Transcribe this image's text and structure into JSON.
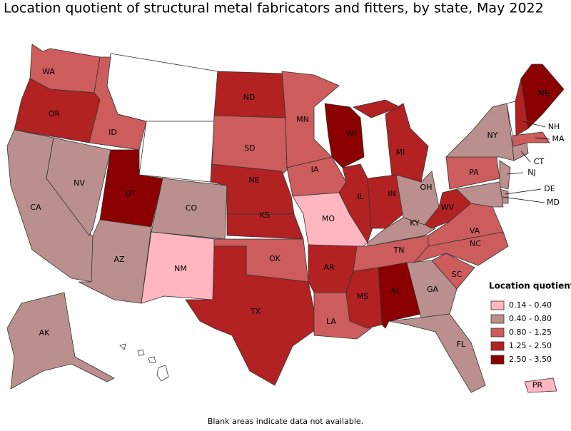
{
  "title": "Location quotient of structural metal fabricators and fitters, by state, May 2022",
  "note": "Blank areas indicate data not available.",
  "legend": {
    "title": "Location quotient",
    "bins": [
      {
        "label": "0.14 - 0.40",
        "color": "#ffb6c1"
      },
      {
        "label": "0.40 - 0.80",
        "color": "#bc8f8f"
      },
      {
        "label": "0.80 - 1.25",
        "color": "#cd5c5c"
      },
      {
        "label": "1.25 - 2.50",
        "color": "#b22222"
      },
      {
        "label": "2.50 - 3.50",
        "color": "#8b0000"
      }
    ]
  },
  "states": [
    {
      "abbr": "WA",
      "bin": 2
    },
    {
      "abbr": "OR",
      "bin": 3
    },
    {
      "abbr": "CA",
      "bin": 1
    },
    {
      "abbr": "NV",
      "bin": 1
    },
    {
      "abbr": "ID",
      "bin": 2
    },
    {
      "abbr": "UT",
      "bin": 4
    },
    {
      "abbr": "AZ",
      "bin": 1
    },
    {
      "abbr": "CO",
      "bin": 1
    },
    {
      "abbr": "NM",
      "bin": 0
    },
    {
      "abbr": "ND",
      "bin": 3
    },
    {
      "abbr": "SD",
      "bin": 2
    },
    {
      "abbr": "NE",
      "bin": 3
    },
    {
      "abbr": "KS",
      "bin": 3
    },
    {
      "abbr": "OK",
      "bin": 2
    },
    {
      "abbr": "TX",
      "bin": 3
    },
    {
      "abbr": "MN",
      "bin": 2
    },
    {
      "abbr": "IA",
      "bin": 2
    },
    {
      "abbr": "MO",
      "bin": 0
    },
    {
      "abbr": "AR",
      "bin": 3
    },
    {
      "abbr": "LA",
      "bin": 2
    },
    {
      "abbr": "WI",
      "bin": 4
    },
    {
      "abbr": "IL",
      "bin": 3
    },
    {
      "abbr": "MI",
      "bin": 3
    },
    {
      "abbr": "IN",
      "bin": 3
    },
    {
      "abbr": "OH",
      "bin": 1
    },
    {
      "abbr": "KY",
      "bin": 1
    },
    {
      "abbr": "TN",
      "bin": 2
    },
    {
      "abbr": "MS",
      "bin": 3
    },
    {
      "abbr": "AL",
      "bin": 4
    },
    {
      "abbr": "GA",
      "bin": 1
    },
    {
      "abbr": "FL",
      "bin": 1
    },
    {
      "abbr": "SC",
      "bin": 2
    },
    {
      "abbr": "NC",
      "bin": 2
    },
    {
      "abbr": "VA",
      "bin": 2
    },
    {
      "abbr": "WV",
      "bin": 3
    },
    {
      "abbr": "PA",
      "bin": 2
    },
    {
      "abbr": "NY",
      "bin": 1
    },
    {
      "abbr": "NJ",
      "bin": 1
    },
    {
      "abbr": "DE",
      "bin": 1
    },
    {
      "abbr": "MD",
      "bin": 1
    },
    {
      "abbr": "CT",
      "bin": 1
    },
    {
      "abbr": "MA",
      "bin": 2
    },
    {
      "abbr": "NH",
      "bin": 3
    },
    {
      "abbr": "ME",
      "bin": 4
    },
    {
      "abbr": "AK",
      "bin": 1
    },
    {
      "abbr": "PR",
      "bin": 0
    }
  ]
}
